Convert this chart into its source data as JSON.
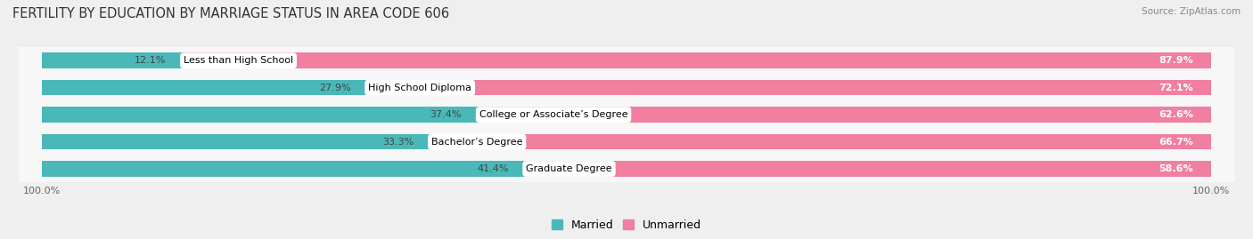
{
  "title": "FERTILITY BY EDUCATION BY MARRIAGE STATUS IN AREA CODE 606",
  "source": "Source: ZipAtlas.com",
  "categories": [
    "Less than High School",
    "High School Diploma",
    "College or Associate’s Degree",
    "Bachelor’s Degree",
    "Graduate Degree"
  ],
  "married_pct": [
    12.1,
    27.9,
    37.4,
    33.3,
    41.4
  ],
  "unmarried_pct": [
    87.9,
    72.1,
    62.6,
    66.7,
    58.6
  ],
  "married_color": "#4ab8b8",
  "unmarried_color": "#f07fa0",
  "bg_color": "#efefef",
  "row_bg_color": "#f7f7f7",
  "title_fontsize": 10.5,
  "label_fontsize": 8,
  "pct_fontsize": 8,
  "bar_height": 0.58,
  "total_width": 100.0
}
